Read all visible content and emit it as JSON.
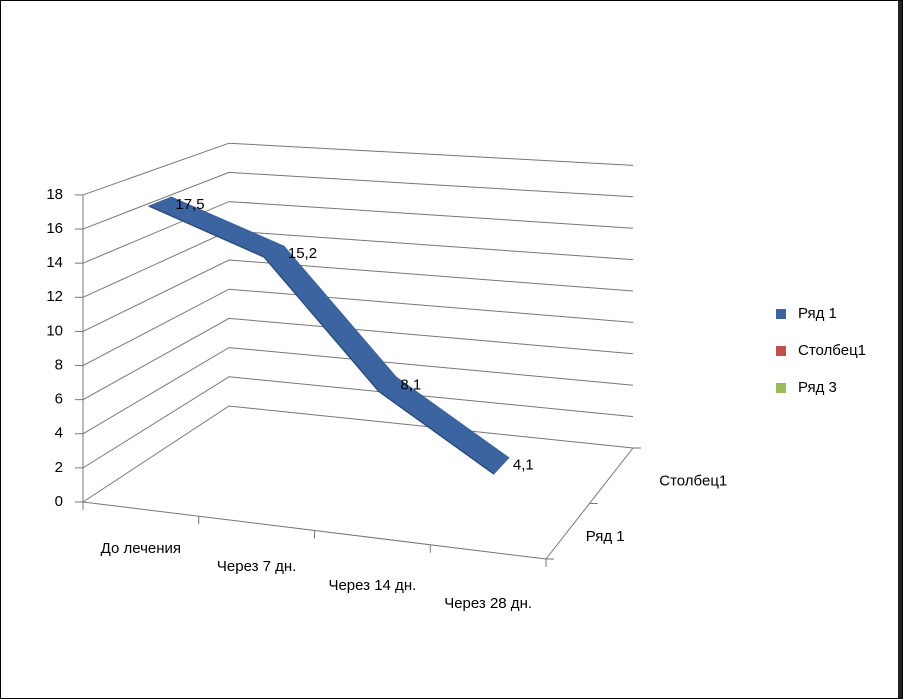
{
  "chart_data": {
    "type": "line3d",
    "categories": [
      "До лечения",
      "Через 7 дн.",
      "Через 14 дн.",
      "Через 28 дн."
    ],
    "depth_categories": [
      "Ряд 1",
      "Столбец1"
    ],
    "series": [
      {
        "name": "Ряд 1",
        "color": "#3b64a0",
        "values": [
          17.5,
          15.2,
          8.1,
          4.1
        ],
        "value_labels": [
          "17,5",
          "15,2",
          "8,1",
          "4,1"
        ]
      },
      {
        "name": "Столбец1",
        "color": "#c0504d",
        "values": [
          null,
          null,
          null,
          null
        ]
      },
      {
        "name": "Ряд 3",
        "color": "#9bbb59",
        "values": [
          null,
          null,
          null,
          null
        ]
      }
    ],
    "ylim": [
      0,
      18
    ],
    "yticks": [
      0,
      2,
      4,
      6,
      8,
      10,
      12,
      14,
      16,
      18
    ],
    "grid": true,
    "legend": "right"
  }
}
